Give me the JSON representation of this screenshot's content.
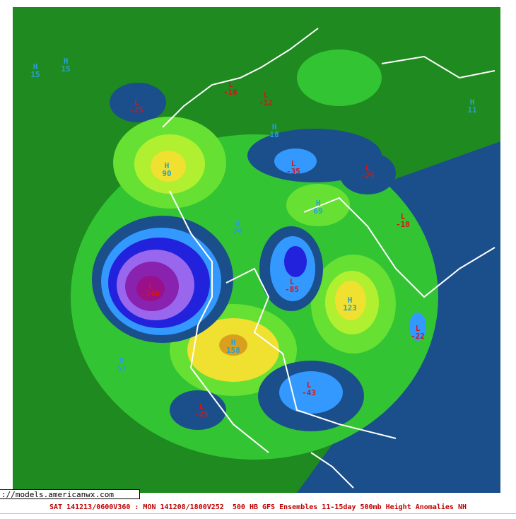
{
  "map": {
    "centers": [
      {
        "type": "L",
        "value": "-25"
      },
      {
        "type": "H",
        "value": "90"
      },
      {
        "type": "L",
        "value": "-240"
      },
      {
        "type": "H",
        "value": "123"
      },
      {
        "type": "L",
        "value": "-85"
      },
      {
        "type": "H",
        "value": "69"
      },
      {
        "type": "L",
        "value": "-35"
      },
      {
        "type": "L",
        "value": "-25"
      },
      {
        "type": "L",
        "value": "-43"
      },
      {
        "type": "L",
        "value": "-22"
      },
      {
        "type": "H",
        "value": "53"
      },
      {
        "type": "H",
        "value": "158"
      },
      {
        "type": "L",
        "value": "-25"
      },
      {
        "type": "H",
        "value": "15"
      },
      {
        "type": "H",
        "value": "15"
      },
      {
        "type": "L",
        "value": "-18"
      },
      {
        "type": "H",
        "value": "29"
      },
      {
        "type": "L",
        "value": "-16"
      },
      {
        "type": "L",
        "value": "-12"
      },
      {
        "type": "H",
        "value": "11"
      },
      {
        "type": "H",
        "value": "18"
      }
    ]
  },
  "url": "://models.americanwx.com",
  "caption": "SAT 141213/0600V360 : MON 141208/1800V252  500 HB GFS Ensembles 11-15day 500mb Height Anomalies NH"
}
